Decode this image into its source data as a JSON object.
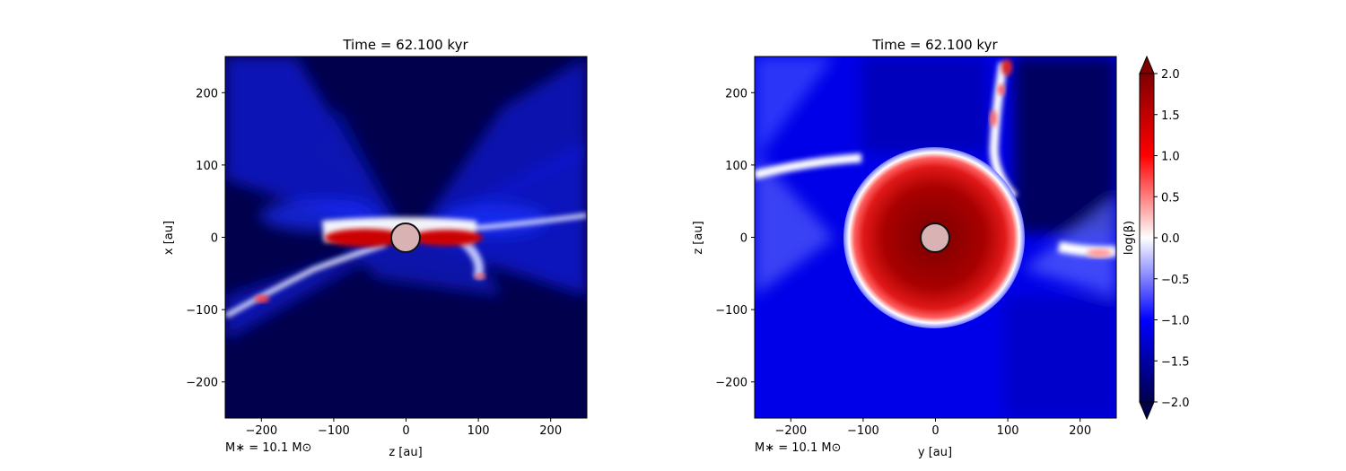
{
  "chart_data": [
    {
      "type": "heatmap",
      "title": "Time = 62.100 kyr",
      "xlabel": "z [au]",
      "ylabel": "x [au]",
      "xlim": [
        -250,
        250
      ],
      "ylim": [
        -250,
        250
      ],
      "xticks": [
        -200,
        -100,
        0,
        100,
        200
      ],
      "yticks": [
        -200,
        -100,
        0,
        100,
        200
      ],
      "annotation": "M$_*$ = 10.1 M$_\\odot$",
      "annotation_text": "M∗ = 10.1 M⊙",
      "sink_particle": {
        "x": 0,
        "y": 0,
        "radius_au": 20
      }
    },
    {
      "type": "heatmap",
      "title": "Time = 62.100 kyr",
      "xlabel": "y [au]",
      "ylabel": "z [au]",
      "xlim": [
        -250,
        250
      ],
      "ylim": [
        -250,
        250
      ],
      "xticks": [
        -200,
        -100,
        0,
        100,
        200
      ],
      "yticks": [
        -200,
        -100,
        0,
        100,
        200
      ],
      "annotation_text": "M∗ = 10.1 M⊙",
      "sink_particle": {
        "x": 0,
        "y": 0,
        "radius_au": 20
      }
    }
  ],
  "colorbar": {
    "label": "log(β)",
    "ticks": [
      "-2.0",
      "-1.5",
      "-1.0",
      "-0.5",
      "0.0",
      "0.5",
      "1.0",
      "1.5",
      "2.0"
    ],
    "range": [
      -2.0,
      2.0
    ],
    "colormap": "seismic",
    "colors": {
      "low": "#00004c",
      "mid_low": "#0000ff",
      "zero": "#ffffff",
      "mid_high": "#ff0000",
      "high": "#800000"
    }
  },
  "tick_labels": [
    "−200",
    "−100",
    "0",
    "100",
    "200"
  ]
}
